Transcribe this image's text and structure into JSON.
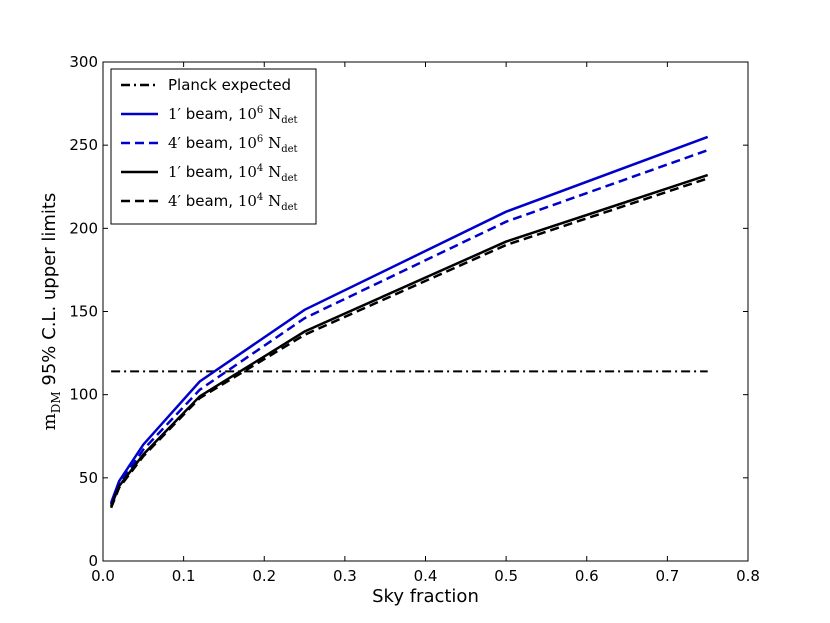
{
  "chart_data": {
    "type": "line",
    "title": "",
    "xlabel": "Sky fraction",
    "ylabel": {
      "prefix": "m",
      "subscript": "DM",
      "suffix": " 95% C.L. upper limits"
    },
    "xlim": [
      0.0,
      0.8
    ],
    "ylim": [
      0,
      300
    ],
    "xticks": [
      0.0,
      0.1,
      0.2,
      0.3,
      0.4,
      0.5,
      0.6,
      0.7,
      0.8
    ],
    "xtick_labels": [
      "0.0",
      "0.1",
      "0.2",
      "0.3",
      "0.4",
      "0.5",
      "0.6",
      "0.7",
      "0.8"
    ],
    "yticks": [
      0,
      50,
      100,
      150,
      200,
      250,
      300
    ],
    "ytick_labels": [
      "0",
      "50",
      "100",
      "150",
      "200",
      "250",
      "300"
    ],
    "grid": false,
    "legend_position": "top-left",
    "x": [
      0.01,
      0.02,
      0.05,
      0.12,
      0.25,
      0.5,
      0.75
    ],
    "series": [
      {
        "name": "Planck expected",
        "legend": {
          "text": "Planck expected"
        },
        "color": "#000000",
        "linestyle": "dashdot",
        "x": [
          0.01,
          0.75
        ],
        "values": [
          114,
          114
        ]
      },
      {
        "name": "1′ beam, 10^6 N_det",
        "legend": {
          "beam_value": "1",
          "beam_unit": "′",
          "beam_text": " beam, ",
          "count_base": "10",
          "count_exp": "6",
          "count_symbol": "N",
          "count_sub": "det"
        },
        "color": "#0000cc",
        "linestyle": "solid",
        "values": [
          35,
          48,
          70,
          108,
          151,
          210,
          255
        ]
      },
      {
        "name": "4′ beam, 10^6 N_det",
        "legend": {
          "beam_value": "4",
          "beam_unit": "′",
          "beam_text": " beam, ",
          "count_base": "10",
          "count_exp": "6",
          "count_symbol": "N",
          "count_sub": "det"
        },
        "color": "#0000cc",
        "linestyle": "dashed",
        "values": [
          34,
          46,
          67,
          103,
          146,
          204,
          247
        ]
      },
      {
        "name": "1′ beam, 10^4 N_det",
        "legend": {
          "beam_value": "1",
          "beam_unit": "′",
          "beam_text": " beam, ",
          "count_base": "10",
          "count_exp": "4",
          "count_symbol": "N",
          "count_sub": "det"
        },
        "color": "#000000",
        "linestyle": "solid",
        "values": [
          33,
          45,
          64,
          99,
          138,
          192,
          232
        ]
      },
      {
        "name": "4′ beam, 10^4 N_det",
        "legend": {
          "beam_value": "4",
          "beam_unit": "′",
          "beam_text": " beam, ",
          "count_base": "10",
          "count_exp": "4",
          "count_symbol": "N",
          "count_sub": "det"
        },
        "color": "#000000",
        "linestyle": "dashed",
        "values": [
          32,
          44,
          63,
          98,
          136,
          190,
          230
        ]
      }
    ]
  }
}
